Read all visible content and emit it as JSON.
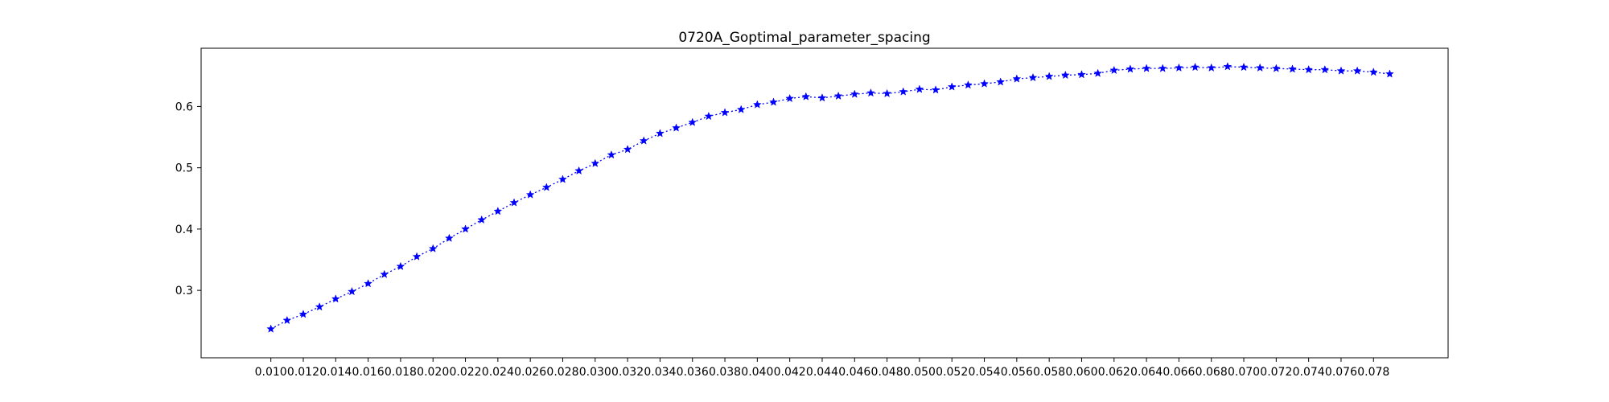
{
  "chart_data": {
    "type": "line",
    "title": "0720A_Goptimal_parameter_spacing",
    "xlabel": "",
    "ylabel": "",
    "xlim": [
      0.0057,
      0.0826
    ],
    "ylim": [
      0.19,
      0.695
    ],
    "xticks": [
      "0.010",
      "0.012",
      "0.014",
      "0.016",
      "0.018",
      "0.020",
      "0.022",
      "0.024",
      "0.026",
      "0.028",
      "0.030",
      "0.032",
      "0.034",
      "0.036",
      "0.038",
      "0.040",
      "0.042",
      "0.044",
      "0.046",
      "0.048",
      "0.050",
      "0.052",
      "0.054",
      "0.056",
      "0.058",
      "0.060",
      "0.062",
      "0.064",
      "0.066",
      "0.068",
      "0.070",
      "0.072",
      "0.074",
      "0.076",
      "0.078"
    ],
    "yticks": [
      "0.3",
      "0.4",
      "0.5",
      "0.6"
    ],
    "grid": false,
    "marker": "star",
    "line_style": "dotted",
    "colors": {
      "series": "#0000ff",
      "axes": "#000000"
    },
    "series": [
      {
        "x": [
          0.01,
          0.011,
          0.012,
          0.013,
          0.014,
          0.015,
          0.016,
          0.017,
          0.018,
          0.019,
          0.02,
          0.021,
          0.022,
          0.023,
          0.024,
          0.025,
          0.026,
          0.027,
          0.028,
          0.029,
          0.03,
          0.031,
          0.032,
          0.033,
          0.034,
          0.035,
          0.036,
          0.037,
          0.038,
          0.039,
          0.04,
          0.041,
          0.042,
          0.043,
          0.044,
          0.045,
          0.046,
          0.047,
          0.048,
          0.049,
          0.05,
          0.051,
          0.052,
          0.053,
          0.054,
          0.055,
          0.056,
          0.057,
          0.058,
          0.059,
          0.06,
          0.061,
          0.062,
          0.063,
          0.064,
          0.065,
          0.066,
          0.067,
          0.068,
          0.069,
          0.07,
          0.071,
          0.072,
          0.073,
          0.074,
          0.075,
          0.076,
          0.077,
          0.078,
          0.079
        ],
        "y": [
          0.237,
          0.251,
          0.261,
          0.273,
          0.286,
          0.298,
          0.311,
          0.326,
          0.339,
          0.355,
          0.368,
          0.385,
          0.4,
          0.415,
          0.429,
          0.443,
          0.456,
          0.468,
          0.481,
          0.495,
          0.507,
          0.521,
          0.53,
          0.544,
          0.556,
          0.565,
          0.574,
          0.584,
          0.59,
          0.595,
          0.603,
          0.607,
          0.613,
          0.616,
          0.614,
          0.617,
          0.62,
          0.622,
          0.621,
          0.624,
          0.628,
          0.627,
          0.632,
          0.635,
          0.637,
          0.64,
          0.645,
          0.647,
          0.649,
          0.651,
          0.652,
          0.654,
          0.659,
          0.661,
          0.662,
          0.662,
          0.663,
          0.664,
          0.663,
          0.665,
          0.664,
          0.663,
          0.662,
          0.661,
          0.66,
          0.66,
          0.658,
          0.658,
          0.656,
          0.653
        ]
      }
    ]
  }
}
